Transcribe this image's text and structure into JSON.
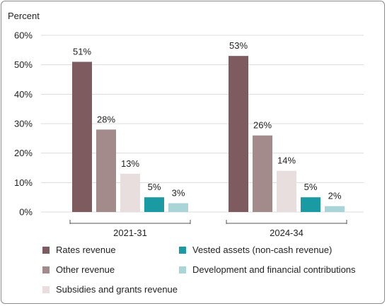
{
  "chart_data": {
    "type": "bar",
    "ylabel": "Percent",
    "ylim": [
      0,
      60
    ],
    "yticks": [
      "0%",
      "10%",
      "20%",
      "30%",
      "40%",
      "50%",
      "60%"
    ],
    "grid": true,
    "categories": [
      "2021-31",
      "2024-34"
    ],
    "series": [
      {
        "name": "Rates revenue",
        "color": "#7d5b5f",
        "values": [
          51,
          53
        ],
        "labels": [
          "51%",
          "53%"
        ]
      },
      {
        "name": "Other revenue",
        "color": "#a48b8b",
        "values": [
          28,
          26
        ],
        "labels": [
          "28%",
          "26%"
        ]
      },
      {
        "name": "Subsidies and grants revenue",
        "color": "#e8dede",
        "values": [
          13,
          14
        ],
        "labels": [
          "13%",
          "14%"
        ]
      },
      {
        "name": "Vested assets (non-cash revenue)",
        "color": "#1a9aa3",
        "values": [
          5,
          5
        ],
        "labels": [
          "5%",
          "5%"
        ]
      },
      {
        "name": "Development and financial contributions",
        "color": "#a9d4d8",
        "values": [
          3,
          2
        ],
        "labels": [
          "3%",
          "2%"
        ]
      }
    ],
    "legend_position": "bottom"
  }
}
